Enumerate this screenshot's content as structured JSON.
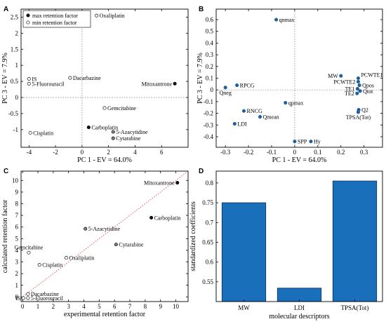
{
  "chart_data": [
    {
      "panel": "A",
      "type": "scatter",
      "xlabel": "PC 1 - EV = 64.0%",
      "ylabel": "PC 3 - EV = 7.9%",
      "xlim": [
        -4.6,
        8.0
      ],
      "ylim": [
        -1.55,
        2.75
      ],
      "xticks": [
        -4,
        -2,
        0,
        2,
        4,
        6
      ],
      "yticks": [
        -1,
        -0.5,
        0,
        0.5,
        1,
        1.5,
        2,
        2.5
      ],
      "zero_lines": true,
      "legend": {
        "position": "top-left",
        "entries": [
          {
            "label": "max retention factor",
            "style": "filled"
          },
          {
            "label": "min retention factor",
            "style": "open"
          }
        ]
      },
      "points": [
        {
          "label": "Oxaliplatin",
          "x": 1.1,
          "y": 2.55,
          "style": "open",
          "anchor": "right"
        },
        {
          "label": "IS",
          "x": -4.0,
          "y": 0.58,
          "style": "open",
          "anchor": "right"
        },
        {
          "label": "5-Fluorouracil",
          "x": -4.0,
          "y": 0.43,
          "style": "open",
          "anchor": "right"
        },
        {
          "label": "Dacarbazine",
          "x": -0.9,
          "y": 0.61,
          "style": "open",
          "anchor": "right"
        },
        {
          "label": "Mitoxantrone",
          "x": 7.0,
          "y": 0.43,
          "style": "filled",
          "anchor": "left"
        },
        {
          "label": "Gemcitabine",
          "x": 1.7,
          "y": -0.33,
          "style": "open",
          "anchor": "right"
        },
        {
          "label": "Cisplatin",
          "x": -3.9,
          "y": -1.1,
          "style": "open",
          "anchor": "right"
        },
        {
          "label": "Carboplatin",
          "x": 0.5,
          "y": -0.93,
          "style": "filled",
          "anchor": "right"
        },
        {
          "label": "5-Azacytidine",
          "x": 2.35,
          "y": -1.07,
          "style": "gray",
          "anchor": "right"
        },
        {
          "label": "Cytarabine",
          "x": 2.35,
          "y": -1.27,
          "style": "gray",
          "anchor": "right"
        }
      ]
    },
    {
      "panel": "B",
      "type": "scatter",
      "xlabel": "PC 1 - EV = 64.0%",
      "ylabel": "PC 3 - EV = 7.9%",
      "xlim": [
        -0.34,
        0.38
      ],
      "ylim": [
        -0.49,
        0.69
      ],
      "xticks": [
        -0.3,
        -0.2,
        -0.1,
        0,
        0.1,
        0.2,
        0.3
      ],
      "yticks": [
        -0.4,
        -0.3,
        -0.2,
        -0.1,
        0,
        0.1,
        0.2,
        0.3,
        0.4,
        0.5,
        0.6
      ],
      "zero_lines": true,
      "points": [
        {
          "label": "qnmax",
          "x": -0.08,
          "y": 0.6,
          "anchor": "right"
        },
        {
          "label": "RPCG",
          "x": -0.25,
          "y": 0.04,
          "anchor": "right"
        },
        {
          "label": "Qneg",
          "x": -0.3,
          "y": 0.02,
          "anchor": "below"
        },
        {
          "label": "qpmax",
          "x": -0.04,
          "y": -0.11,
          "anchor": "right"
        },
        {
          "label": "RNCG",
          "x": -0.22,
          "y": -0.18,
          "anchor": "right"
        },
        {
          "label": "Qmean",
          "x": -0.15,
          "y": -0.23,
          "anchor": "right"
        },
        {
          "label": "LDI",
          "x": -0.26,
          "y": -0.29,
          "anchor": "right"
        },
        {
          "label": "SPP",
          "x": 0.0,
          "y": -0.44,
          "anchor": "right"
        },
        {
          "label": "Hy",
          "x": 0.07,
          "y": -0.44,
          "anchor": "right"
        },
        {
          "label": "MW",
          "x": 0.2,
          "y": 0.12,
          "anchor": "left"
        },
        {
          "label": "PCWTE1",
          "x": 0.275,
          "y": 0.1,
          "anchor": "right-up"
        },
        {
          "label": "PCWTE2",
          "x": 0.275,
          "y": 0.07,
          "anchor": "left"
        },
        {
          "label": "Qpos",
          "x": 0.28,
          "y": 0.04,
          "anchor": "right"
        },
        {
          "label": "TE1",
          "x": 0.272,
          "y": 0.01,
          "anchor": "left"
        },
        {
          "label": "Qtot",
          "x": 0.283,
          "y": -0.01,
          "anchor": "right"
        },
        {
          "label": "TE2",
          "x": 0.27,
          "y": -0.03,
          "anchor": "left"
        },
        {
          "label": "Q2",
          "x": 0.277,
          "y": -0.17,
          "anchor": "right"
        },
        {
          "label": "TPSA(Tot)",
          "x": 0.275,
          "y": -0.19,
          "anchor": "below"
        }
      ]
    },
    {
      "panel": "C",
      "type": "scatter",
      "xlabel": "experimental retention factor",
      "ylabel": "calculated retention factor",
      "xlim": [
        -0.1,
        10.8
      ],
      "ylim": [
        -0.4,
        10.8
      ],
      "xticks": [
        0,
        1,
        2,
        3,
        4,
        5,
        6,
        7,
        8,
        9,
        10
      ],
      "yticks": [
        0,
        1,
        2,
        3,
        4,
        5,
        6,
        7,
        8,
        9,
        10
      ],
      "reference_line": "y = x",
      "points": [
        {
          "label": "Mitoxantrone",
          "x": 10.1,
          "y": 9.8,
          "style": "filled",
          "anchor": "left"
        },
        {
          "label": "Carboplatin",
          "x": 8.4,
          "y": 6.8,
          "style": "filled",
          "anchor": "right"
        },
        {
          "label": "5-Azacytidine",
          "x": 4.1,
          "y": 5.85,
          "style": "gray",
          "anchor": "right"
        },
        {
          "label": "Cytarabine",
          "x": 6.1,
          "y": 4.5,
          "style": "gray",
          "anchor": "right"
        },
        {
          "label": "Gemcitabine",
          "x": 0.4,
          "y": 3.8,
          "style": "open",
          "anchor": "above"
        },
        {
          "label": "Oxaliplatin",
          "x": 2.85,
          "y": 3.35,
          "style": "open",
          "anchor": "right"
        },
        {
          "label": "Cisplatin",
          "x": 1.1,
          "y": 2.75,
          "style": "open",
          "anchor": "right"
        },
        {
          "label": "Dacarbazine",
          "x": 0.35,
          "y": 0.25,
          "style": "open",
          "anchor": "right"
        },
        {
          "label": "IS",
          "x": 0.05,
          "y": -0.1,
          "style": "open",
          "anchor": "left"
        },
        {
          "label": "5-Fluorouracil",
          "x": 0.35,
          "y": -0.1,
          "style": "open",
          "anchor": "right"
        }
      ]
    },
    {
      "panel": "D",
      "type": "bar",
      "categories": [
        "MW",
        "LDI",
        "TPSA(Tot)"
      ],
      "values": [
        0.75,
        0.534,
        0.805
      ],
      "xlabel": "molecular descriptors",
      "ylabel": "standardized coefficients",
      "ylim": [
        0.5,
        0.83
      ],
      "yticks": [
        0.55,
        0.6,
        0.65,
        0.7,
        0.75,
        0.8
      ],
      "bar_color": "#1a6fba"
    }
  ]
}
